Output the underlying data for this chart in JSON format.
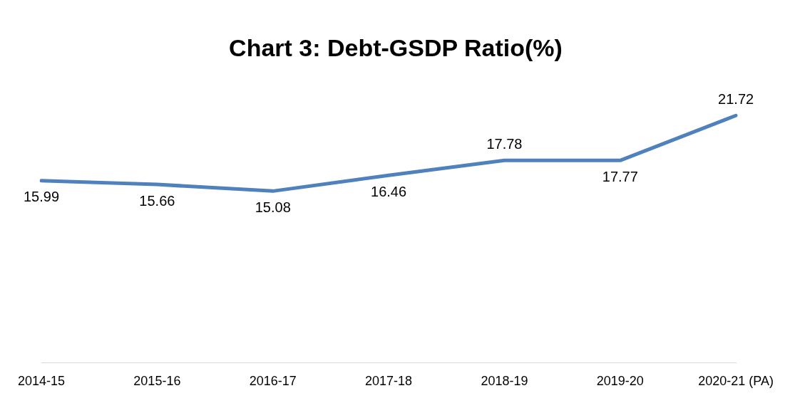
{
  "chart_data": {
    "type": "line",
    "title": "Chart 3: Debt-GSDP Ratio(%)",
    "categories": [
      "2014-15",
      "2015-16",
      "2016-17",
      "2017-18",
      "2018-19",
      "2019-20",
      "2020-21 (PA)"
    ],
    "values": [
      15.99,
      15.66,
      15.08,
      16.46,
      17.78,
      17.77,
      21.72
    ],
    "color": "#4f81bd",
    "tick_labels": "x",
    "data_labels": true,
    "grid": false,
    "legend": false,
    "marker": "none",
    "line_style": "solid"
  }
}
